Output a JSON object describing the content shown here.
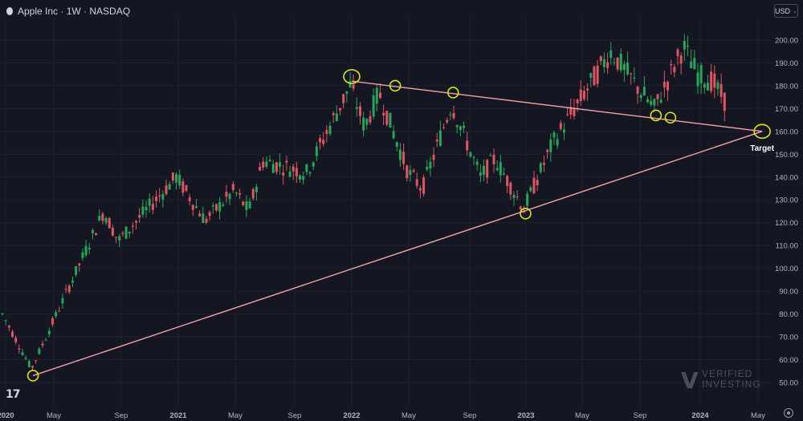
{
  "header": {
    "title": "Apple Inc · 1W · NASDAQ",
    "currency": "USD"
  },
  "watermark": {
    "line1": "VERIFIED",
    "line2": "INVESTING"
  },
  "colors": {
    "background": "#141722",
    "up": "#26a65b",
    "down": "#e05561",
    "trendline": "#f4a5a8",
    "marker": "#d9e41e",
    "axis_text": "#b2b5be"
  },
  "icons": [
    "apple-icon",
    "chevron-down-icon",
    "tradingview-logo",
    "gear-icon"
  ],
  "chart_data": {
    "type": "candlestick",
    "title": "Apple Inc · 1W · NASDAQ",
    "interval": "1W",
    "ylim": [
      45,
      205
    ],
    "y_ticks": [
      "200.00",
      "190.00",
      "180.00",
      "170.00",
      "160.00",
      "150.00",
      "140.00",
      "130.00",
      "120.00",
      "110.00",
      "100.00",
      "90.00",
      "80.00",
      "70.00",
      "60.00",
      "50.00"
    ],
    "x_ticks": [
      "2020",
      "May",
      "Sep",
      "2021",
      "May",
      "Sep",
      "2022",
      "May",
      "Sep",
      "2023",
      "May",
      "Sep",
      "2024",
      "May"
    ],
    "grid": true,
    "trend_anchors": [
      {
        "x": "2020-01",
        "y": 80
      },
      {
        "x": "2020-03",
        "y": 56
      },
      {
        "x": "2020-08",
        "y": 125
      },
      {
        "x": "2020-09",
        "y": 112
      },
      {
        "x": "2021-01",
        "y": 140
      },
      {
        "x": "2021-03",
        "y": 121
      },
      {
        "x": "2021-05",
        "y": 134
      },
      {
        "x": "2021-06",
        "y": 125
      },
      {
        "x": "2021-07",
        "y": 147
      },
      {
        "x": "2021-10",
        "y": 142
      },
      {
        "x": "2022-01",
        "y": 180
      },
      {
        "x": "2022-02",
        "y": 162
      },
      {
        "x": "2022-03",
        "y": 177
      },
      {
        "x": "2022-05",
        "y": 142
      },
      {
        "x": "2022-06",
        "y": 135
      },
      {
        "x": "2022-08",
        "y": 172
      },
      {
        "x": "2022-10",
        "y": 140
      },
      {
        "x": "2022-11",
        "y": 148
      },
      {
        "x": "2023-01",
        "y": 126
      },
      {
        "x": "2023-03",
        "y": 155
      },
      {
        "x": "2023-06",
        "y": 185
      },
      {
        "x": "2023-07",
        "y": 195
      },
      {
        "x": "2023-09",
        "y": 178
      },
      {
        "x": "2023-10",
        "y": 170
      },
      {
        "x": "2023-12",
        "y": 197
      },
      {
        "x": "2024-01",
        "y": 185
      },
      {
        "x": "2024-02",
        "y": 182
      },
      {
        "x": "2024-03",
        "y": 172
      }
    ],
    "trendlines": [
      {
        "name": "resistance",
        "from": {
          "x": "2022-01",
          "y": 182
        },
        "to": {
          "x": "2024-05",
          "y": 160
        }
      },
      {
        "name": "support",
        "from": {
          "x": "2020-03",
          "y": 53
        },
        "to": {
          "x": "2024-05",
          "y": 160
        }
      }
    ],
    "circles": [
      {
        "x": "2022-01",
        "y": 184
      },
      {
        "x": "2022-04",
        "y": 180
      },
      {
        "x": "2022-08",
        "y": 177
      },
      {
        "x": "2023-10",
        "y": 167
      },
      {
        "x": "2023-11",
        "y": 166
      },
      {
        "x": "2020-03",
        "y": 53
      },
      {
        "x": "2023-01",
        "y": 124
      },
      {
        "x": "2024-05",
        "y": 160
      }
    ],
    "annotations": [
      {
        "text": "Target",
        "x": "2024-05",
        "y": 160
      }
    ]
  }
}
